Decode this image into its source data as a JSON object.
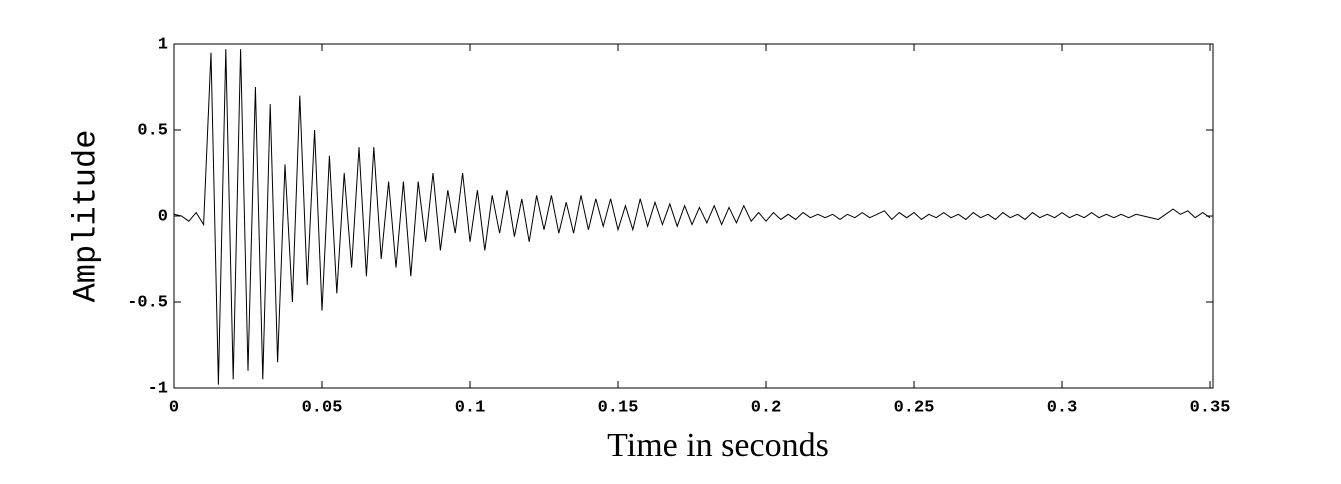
{
  "chart_data": {
    "type": "line",
    "xlabel": "Time in seconds",
    "ylabel": "Amplitude",
    "color": "#000000",
    "xlim": [
      0,
      0.351
    ],
    "ylim": [
      -1,
      1
    ],
    "xticks": [
      0,
      0.05,
      0.1,
      0.15,
      0.2,
      0.25,
      0.3,
      0.35
    ],
    "yticks": [
      -1,
      -0.5,
      0,
      0.5,
      1
    ],
    "x": [
      0,
      0.0025,
      0.005,
      0.0075,
      0.01,
      0.0125,
      0.015,
      0.0175,
      0.02,
      0.0225,
      0.025,
      0.0275,
      0.03,
      0.0325,
      0.035,
      0.0375,
      0.04,
      0.0425,
      0.045,
      0.0475,
      0.05,
      0.0525,
      0.055,
      0.0575,
      0.06,
      0.0625,
      0.065,
      0.0675,
      0.07,
      0.0725,
      0.075,
      0.0775,
      0.08,
      0.0825,
      0.085,
      0.0875,
      0.09,
      0.0925,
      0.095,
      0.0975,
      0.1,
      0.1025,
      0.105,
      0.1075,
      0.11,
      0.1125,
      0.115,
      0.1175,
      0.12,
      0.1225,
      0.125,
      0.1275,
      0.13,
      0.1325,
      0.135,
      0.1375,
      0.14,
      0.1425,
      0.145,
      0.1475,
      0.15,
      0.1525,
      0.155,
      0.1575,
      0.16,
      0.1625,
      0.165,
      0.1675,
      0.17,
      0.1725,
      0.175,
      0.1775,
      0.18,
      0.1825,
      0.185,
      0.1875,
      0.19,
      0.1925,
      0.195,
      0.1975,
      0.2,
      0.2025,
      0.205,
      0.2075,
      0.21,
      0.2125,
      0.215,
      0.2175,
      0.22,
      0.2225,
      0.225,
      0.2275,
      0.23,
      0.2325,
      0.235,
      0.2375,
      0.24,
      0.2425,
      0.245,
      0.2475,
      0.25,
      0.2525,
      0.255,
      0.2575,
      0.26,
      0.2625,
      0.265,
      0.2675,
      0.27,
      0.2725,
      0.275,
      0.2775,
      0.28,
      0.2825,
      0.285,
      0.2875,
      0.29,
      0.2925,
      0.295,
      0.2975,
      0.3,
      0.3025,
      0.305,
      0.3075,
      0.31,
      0.3125,
      0.315,
      0.3175,
      0.32,
      0.3225,
      0.325,
      0.3275,
      0.33,
      0.3325,
      0.335,
      0.3375,
      0.34,
      0.3425,
      0.345,
      0.3475,
      0.35
    ],
    "values": [
      0.01,
      0,
      -0.03,
      0.02,
      -0.05,
      0.95,
      -0.98,
      0.97,
      -0.95,
      0.97,
      -0.9,
      0.75,
      -0.95,
      0.65,
      -0.85,
      0.3,
      -0.5,
      0.7,
      -0.4,
      0.5,
      -0.55,
      0.35,
      -0.45,
      0.25,
      -0.3,
      0.4,
      -0.35,
      0.4,
      -0.25,
      0.2,
      -0.3,
      0.2,
      -0.35,
      0.2,
      -0.15,
      0.25,
      -0.2,
      0.15,
      -0.1,
      0.25,
      -0.15,
      0.15,
      -0.2,
      0.12,
      -0.1,
      0.15,
      -0.12,
      0.1,
      -0.15,
      0.12,
      -0.08,
      0.12,
      -0.1,
      0.08,
      -0.1,
      0.12,
      -0.08,
      0.1,
      -0.06,
      0.1,
      -0.08,
      0.06,
      -0.08,
      0.1,
      -0.06,
      0.08,
      -0.05,
      0.07,
      -0.06,
      0.06,
      -0.05,
      0.05,
      -0.04,
      0.06,
      -0.05,
      0.05,
      -0.04,
      0.06,
      -0.03,
      0.02,
      -0.03,
      0.02,
      -0.02,
      0.01,
      -0.02,
      0.02,
      -0.01,
      0.01,
      -0.01,
      0.01,
      -0.02,
      0.01,
      -0.01,
      0.02,
      -0.01,
      0.01,
      0.03,
      -0.02,
      0.02,
      -0.01,
      0.02,
      -0.02,
      0.01,
      -0.01,
      0.02,
      -0.01,
      0.01,
      -0.02,
      0.02,
      -0.01,
      0.01,
      -0.02,
      0.02,
      -0.01,
      0.01,
      -0.02,
      0.02,
      -0.01,
      0.01,
      -0.01,
      0.02,
      -0.01,
      0.01,
      -0.01,
      0.02,
      -0.01,
      0.01,
      -0.01,
      0.01,
      -0.01,
      0.01,
      0,
      -0.01,
      -0.02,
      0.01,
      0.04,
      0.01,
      0.03,
      -0.01,
      0.02,
      -0.01
    ]
  }
}
